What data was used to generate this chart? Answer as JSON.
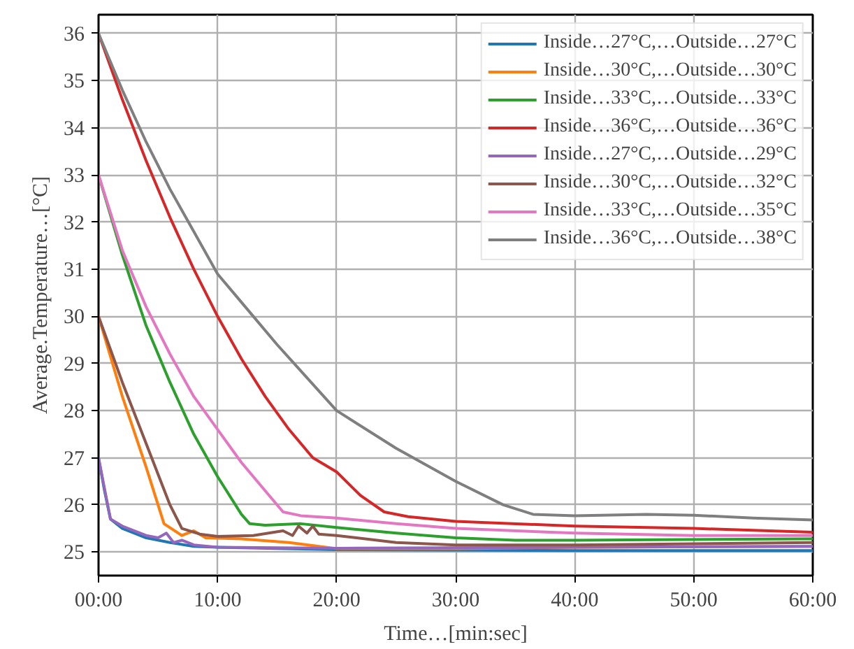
{
  "chart_data": {
    "type": "line",
    "xlabel": "Time…[min:sec]",
    "ylabel": "Average.Temperature…[°C]",
    "xlim": [
      0,
      60
    ],
    "ylim": [
      24.5,
      36.4
    ],
    "xticks": [
      {
        "value": 0,
        "label": "00:00"
      },
      {
        "value": 10,
        "label": "10:00"
      },
      {
        "value": 20,
        "label": "20:00"
      },
      {
        "value": 30,
        "label": "30:00"
      },
      {
        "value": 40,
        "label": "40:00"
      },
      {
        "value": 50,
        "label": "50:00"
      },
      {
        "value": 60,
        "label": "60:00"
      }
    ],
    "yticks": [
      25,
      26,
      27,
      28,
      29,
      30,
      31,
      32,
      33,
      34,
      35,
      36
    ],
    "grid": true,
    "legend": "top right",
    "line_style": "solid",
    "series": [
      {
        "name": "Inside…27°C,…Outside…27°C",
        "color": "#1f77b4",
        "x": [
          0,
          0.5,
          1,
          2,
          4,
          6,
          8,
          10,
          20,
          40,
          60
        ],
        "values": [
          27,
          26.3,
          25.7,
          25.5,
          25.3,
          25.2,
          25.12,
          25.1,
          25.05,
          25.03,
          25.03
        ]
      },
      {
        "name": "Inside…30°C,…Outside…30°C",
        "color": "#ff7f0e",
        "x": [
          0,
          2,
          4,
          5.5,
          7,
          8,
          9,
          12,
          16,
          20,
          30,
          40,
          60
        ],
        "values": [
          30,
          28.3,
          26.8,
          25.6,
          25.35,
          25.45,
          25.3,
          25.28,
          25.2,
          25.07,
          25.07,
          25.1,
          25.12
        ]
      },
      {
        "name": "Inside…33°C,…Outside…33°C",
        "color": "#2ca02c",
        "x": [
          0,
          2,
          4,
          6,
          8,
          10,
          12,
          12.7,
          14,
          17,
          20,
          25,
          30,
          35,
          40,
          60
        ],
        "values": [
          33,
          31.3,
          29.8,
          28.6,
          27.5,
          26.6,
          25.8,
          25.6,
          25.57,
          25.6,
          25.52,
          25.4,
          25.3,
          25.25,
          25.25,
          25.28
        ]
      },
      {
        "name": "Inside…36°C,…Outside…36°C",
        "color": "#d62728",
        "x": [
          0,
          2,
          4,
          6,
          8,
          10,
          12,
          14,
          16,
          18,
          20,
          22,
          24,
          26,
          30,
          40,
          50,
          60
        ],
        "values": [
          36,
          34.6,
          33.3,
          32.1,
          31.0,
          30.0,
          29.1,
          28.3,
          27.6,
          27.0,
          26.7,
          26.2,
          25.85,
          25.75,
          25.65,
          25.55,
          25.5,
          25.42
        ]
      },
      {
        "name": "Inside…27°C,…Outside…29°C",
        "color": "#9467bd",
        "x": [
          0,
          1,
          2,
          4,
          5,
          5.7,
          6.3,
          7,
          8,
          10,
          20,
          40,
          60
        ],
        "values": [
          27,
          25.7,
          25.55,
          25.35,
          25.3,
          25.4,
          25.2,
          25.25,
          25.15,
          25.1,
          25.08,
          25.1,
          25.12
        ]
      },
      {
        "name": "Inside…30°C,…Outside…32°C",
        "color": "#8c564b",
        "x": [
          0,
          2,
          4,
          6,
          7,
          8.5,
          10,
          13,
          15.5,
          16.3,
          16.8,
          17.5,
          18,
          18.5,
          20,
          25,
          30,
          40,
          60
        ],
        "values": [
          30,
          28.6,
          27.3,
          26.0,
          25.5,
          25.38,
          25.33,
          25.35,
          25.45,
          25.35,
          25.55,
          25.4,
          25.55,
          25.38,
          25.35,
          25.2,
          25.15,
          25.15,
          25.2
        ]
      },
      {
        "name": "Inside…33°C,…Outside…35°C",
        "color": "#e377c2",
        "x": [
          0,
          2,
          4,
          6,
          8,
          10,
          12,
          14,
          15.5,
          17,
          20,
          25,
          30,
          40,
          50,
          60
        ],
        "values": [
          33,
          31.4,
          30.2,
          29.2,
          28.3,
          27.6,
          26.9,
          26.3,
          25.85,
          25.77,
          25.72,
          25.6,
          25.5,
          25.4,
          25.35,
          25.35
        ]
      },
      {
        "name": "Inside…36°C,…Outside…38°C",
        "color": "#7f7f7f",
        "x": [
          0,
          2,
          4,
          6,
          8,
          10,
          12,
          15,
          20,
          25,
          30,
          34,
          36.5,
          40,
          46,
          50,
          55,
          60
        ],
        "values": [
          36,
          34.8,
          33.7,
          32.7,
          31.8,
          30.9,
          30.3,
          29.4,
          28.0,
          27.2,
          26.5,
          26.0,
          25.8,
          25.77,
          25.8,
          25.78,
          25.72,
          25.68
        ]
      }
    ]
  }
}
